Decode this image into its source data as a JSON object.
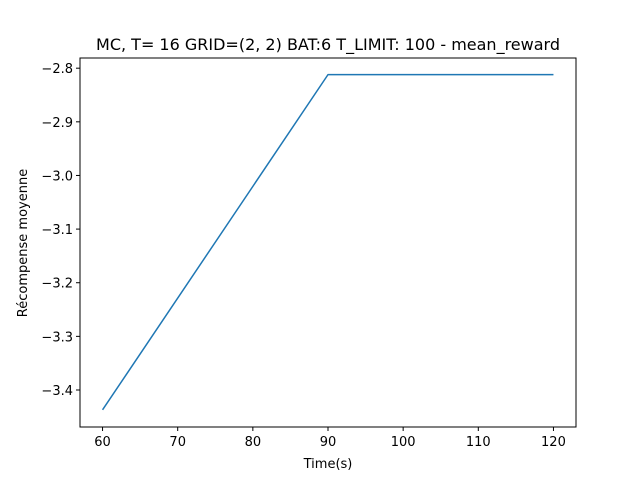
{
  "chart_data": {
    "type": "line",
    "title": "MC, T= 16 GRID=(2, 2)   BAT:6 T_LIMIT:  100 - mean_reward",
    "xlabel": "Time(s)",
    "ylabel": "Récompense moyenne",
    "x": [
      60,
      90,
      120
    ],
    "series": [
      {
        "values": [
          -3.437,
          -2.812,
          -2.812
        ],
        "color": "#1f77b4"
      }
    ],
    "xlim": [
      57,
      123
    ],
    "ylim": [
      -3.469,
      -2.781
    ],
    "x_ticks": [
      60,
      70,
      80,
      90,
      100,
      110,
      120
    ],
    "x_tick_labels": [
      "60",
      "70",
      "80",
      "90",
      "100",
      "110",
      "120"
    ],
    "y_ticks": [
      -3.4,
      -3.3,
      -3.2,
      -3.1,
      -3.0,
      -2.9,
      -2.8
    ],
    "y_tick_labels": [
      "−3.4",
      "−3.3",
      "−3.2",
      "−3.1",
      "−3.0",
      "−2.9",
      "−2.8"
    ],
    "grid": false,
    "legend": "none"
  }
}
